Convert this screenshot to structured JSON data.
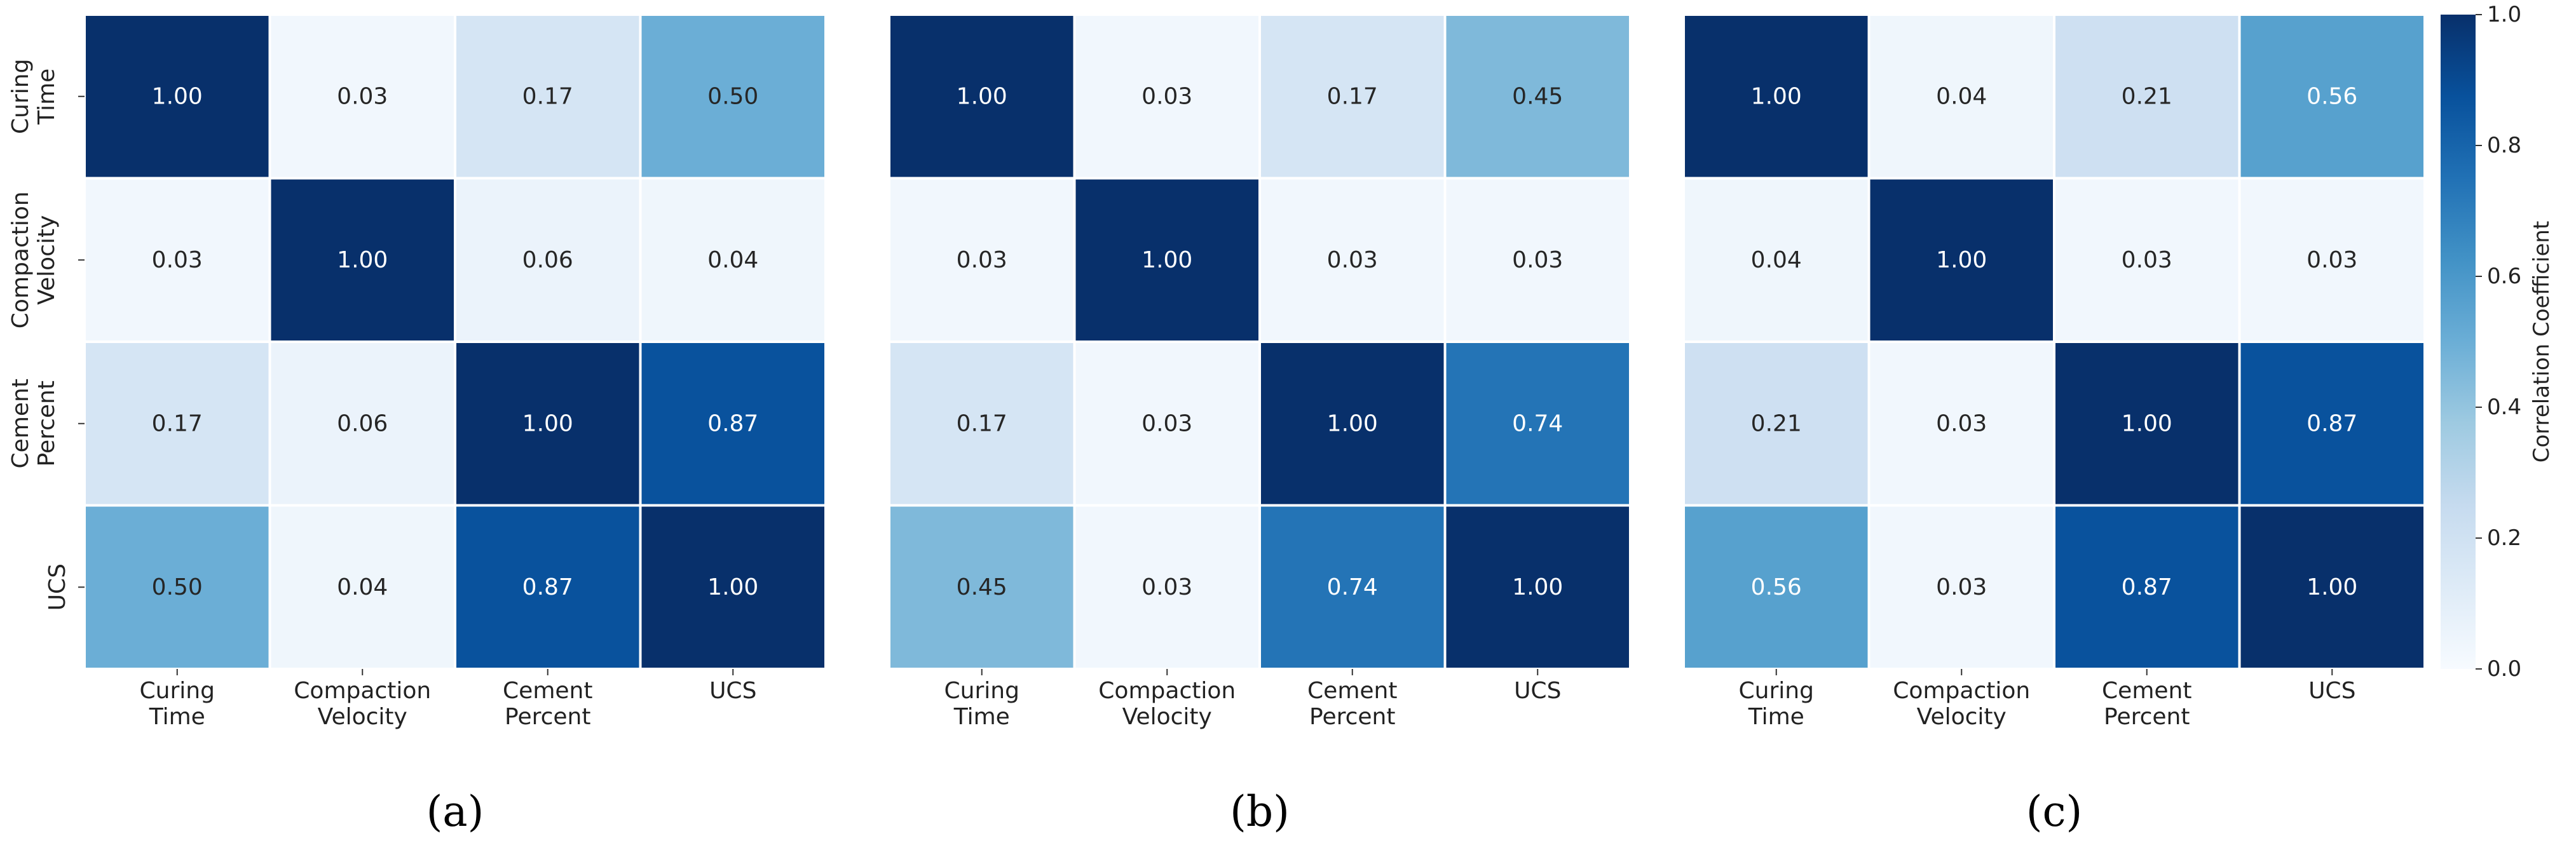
{
  "chart_data": [
    {
      "type": "heatmap",
      "panel_label": "(a)",
      "row_labels": [
        [
          "Curing",
          "Time"
        ],
        [
          "Compaction",
          "Velocity"
        ],
        [
          "Cement",
          "Percent"
        ],
        [
          "UCS"
        ]
      ],
      "col_labels": [
        [
          "Curing",
          "Time"
        ],
        [
          "Compaction",
          "Velocity"
        ],
        [
          "Cement",
          "Percent"
        ],
        [
          "UCS"
        ]
      ],
      "values": [
        [
          1.0,
          0.03,
          0.17,
          0.5
        ],
        [
          0.03,
          1.0,
          0.06,
          0.04
        ],
        [
          0.17,
          0.06,
          1.0,
          0.87
        ],
        [
          0.5,
          0.04,
          0.87,
          1.0
        ]
      ],
      "value_labels": [
        [
          "1.00",
          "0.03",
          "0.17",
          "0.50"
        ],
        [
          "0.03",
          "1.00",
          "0.06",
          "0.04"
        ],
        [
          "0.17",
          "0.06",
          "1.00",
          "0.87"
        ],
        [
          "0.50",
          "0.04",
          "0.87",
          "1.00"
        ]
      ]
    },
    {
      "type": "heatmap",
      "panel_label": "(b)",
      "row_labels": [
        [
          "Curing",
          "Time"
        ],
        [
          "Compaction",
          "Velocity"
        ],
        [
          "Cement",
          "Percent"
        ],
        [
          "UCS"
        ]
      ],
      "col_labels": [
        [
          "Curing",
          "Time"
        ],
        [
          "Compaction",
          "Velocity"
        ],
        [
          "Cement",
          "Percent"
        ],
        [
          "UCS"
        ]
      ],
      "values": [
        [
          1.0,
          0.03,
          0.17,
          0.45
        ],
        [
          0.03,
          1.0,
          0.03,
          0.03
        ],
        [
          0.17,
          0.03,
          1.0,
          0.74
        ],
        [
          0.45,
          0.03,
          0.74,
          1.0
        ]
      ],
      "value_labels": [
        [
          "1.00",
          "0.03",
          "0.17",
          "0.45"
        ],
        [
          "0.03",
          "1.00",
          "0.03",
          "0.03"
        ],
        [
          "0.17",
          "0.03",
          "1.00",
          "0.74"
        ],
        [
          "0.45",
          "0.03",
          "0.74",
          "1.00"
        ]
      ]
    },
    {
      "type": "heatmap",
      "panel_label": "(c)",
      "row_labels": [
        [
          "Curing",
          "Time"
        ],
        [
          "Compaction",
          "Velocity"
        ],
        [
          "Cement",
          "Percent"
        ],
        [
          "UCS"
        ]
      ],
      "col_labels": [
        [
          "Curing",
          "Time"
        ],
        [
          "Compaction",
          "Velocity"
        ],
        [
          "Cement",
          "Percent"
        ],
        [
          "UCS"
        ]
      ],
      "values": [
        [
          1.0,
          0.04,
          0.21,
          0.56
        ],
        [
          0.04,
          1.0,
          0.03,
          0.03
        ],
        [
          0.21,
          0.03,
          1.0,
          0.87
        ],
        [
          0.56,
          0.03,
          0.87,
          1.0
        ]
      ],
      "value_labels": [
        [
          "1.00",
          "0.04",
          "0.21",
          "0.56"
        ],
        [
          "0.04",
          "1.00",
          "0.03",
          "0.03"
        ],
        [
          "0.21",
          "0.03",
          "1.00",
          "0.87"
        ],
        [
          "0.56",
          "0.03",
          "0.87",
          "1.00"
        ]
      ]
    }
  ],
  "colorbar": {
    "label": "Correlation Coefficient",
    "range": [
      0.0,
      1.0
    ],
    "ticks": [
      0.0,
      0.2,
      0.4,
      0.6,
      0.8,
      1.0
    ],
    "tick_labels": [
      "0.0",
      "0.2",
      "0.4",
      "0.6",
      "0.8",
      "1.0"
    ],
    "colormap": "Blues",
    "colormap_stops": [
      "#f7fbff",
      "#deebf7",
      "#c6dbef",
      "#9ecae1",
      "#6baed6",
      "#4292c6",
      "#2171b5",
      "#08519c",
      "#08306b"
    ]
  },
  "colors": {
    "grid_line": "#ffffff",
    "text_dark": "#262626",
    "text_light": "#ffffff",
    "background": "#ffffff"
  }
}
